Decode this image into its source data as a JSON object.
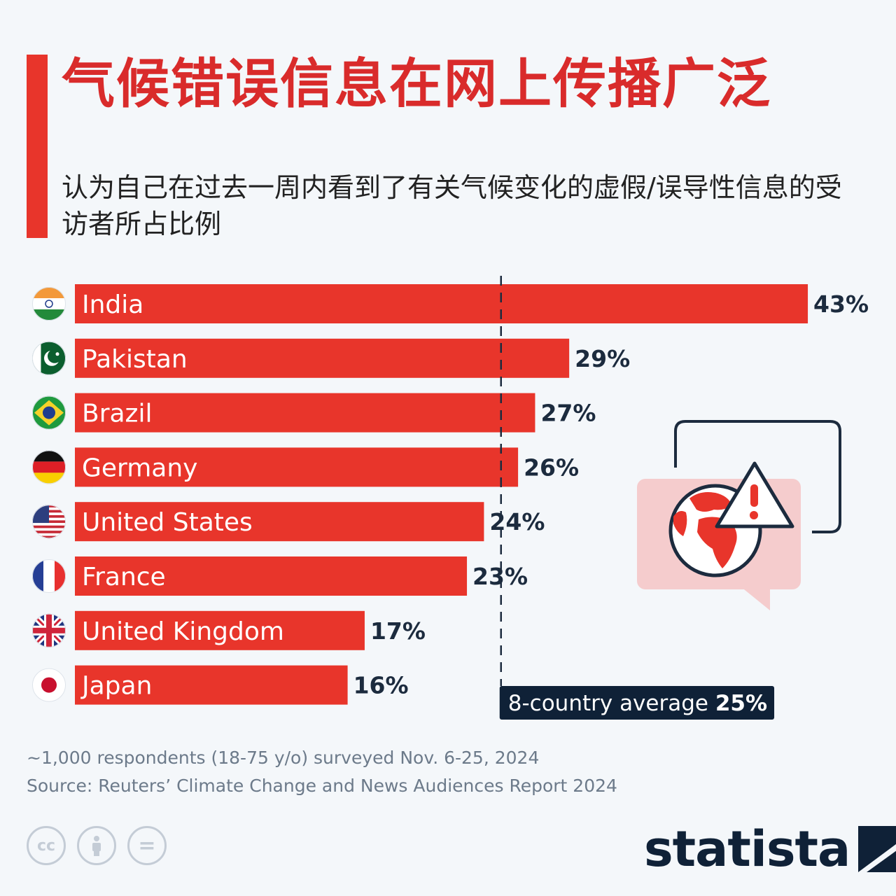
{
  "title": "气候错误信息在网上传播广泛",
  "subtitle": "认为自己在过去一周内看到了有关气候变化的虚假/误导性信息的受访者所占比例",
  "chart_data": {
    "type": "bar",
    "orientation": "horizontal",
    "categories": [
      "India",
      "Pakistan",
      "Brazil",
      "Germany",
      "United States",
      "France",
      "United Kingdom",
      "Japan"
    ],
    "values": [
      43,
      29,
      27,
      26,
      24,
      23,
      17,
      16
    ],
    "value_labels": [
      "43%",
      "29%",
      "27%",
      "26%",
      "24%",
      "23%",
      "17%",
      "16%"
    ],
    "bar_color": "#e8352b",
    "average": {
      "label": "8-country average",
      "value": 25,
      "value_label": "25%"
    }
  },
  "flag_icons": [
    "india-flag-icon",
    "pakistan-flag-icon",
    "brazil-flag-icon",
    "germany-flag-icon",
    "united-states-flag-icon",
    "france-flag-icon",
    "united-kingdom-flag-icon",
    "japan-flag-icon"
  ],
  "footer": {
    "note": "~1,000 respondents (18-75 y/o) surveyed Nov. 6-25, 2024",
    "source": "Source: Reuters’ Climate Change and News Audiences Report 2024"
  },
  "cc_icons": [
    {
      "name": "cc-icon",
      "label": "cc"
    },
    {
      "name": "attribution-icon",
      "label": ""
    },
    {
      "name": "no-derivatives-icon",
      "label": "="
    }
  ],
  "logo": {
    "text": "statista"
  },
  "colors": {
    "accent": "#e8352b",
    "title": "#d92b2b",
    "dark": "#0f2137",
    "muted": "#6c7a8a"
  }
}
